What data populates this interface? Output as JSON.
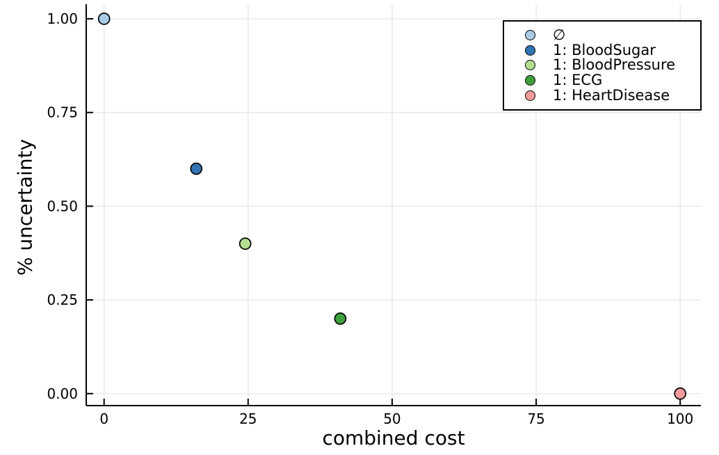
{
  "chart_data": {
    "type": "scatter",
    "xlabel": "combined cost",
    "ylabel": "% uncertainty",
    "xlim": [
      -3.1,
      103.6
    ],
    "ylim": [
      -0.032,
      1.039
    ],
    "xticks": [
      0,
      25,
      50,
      75,
      100
    ],
    "xtick_labels": [
      "0",
      "25",
      "50",
      "75",
      "100"
    ],
    "yticks": [
      0,
      0.25,
      0.5,
      0.75,
      1.0
    ],
    "ytick_labels": [
      "0.00",
      "0.25",
      "0.50",
      "0.75",
      "1.00"
    ],
    "grid": true,
    "legend_position": "top-right",
    "background_color": "#ffffff",
    "grid_color": "#e6e6e6",
    "axis_color": "#000000",
    "marker_edge_color": "#000000",
    "series": [
      {
        "name": "∅",
        "color": "#a9cbe5",
        "points": [
          [
            0,
            1.0
          ]
        ]
      },
      {
        "name": "1: BloodSugar",
        "color": "#3273b4",
        "points": [
          [
            16,
            0.6
          ]
        ]
      },
      {
        "name": "1: BloodPressure",
        "color": "#b3dd90",
        "points": [
          [
            24.5,
            0.4
          ]
        ]
      },
      {
        "name": "1: ECG",
        "color": "#3d9f3c",
        "points": [
          [
            41,
            0.2
          ]
        ]
      },
      {
        "name": "1: HeartDisease",
        "color": "#f29c9b",
        "points": [
          [
            100,
            0.0
          ]
        ]
      }
    ]
  }
}
